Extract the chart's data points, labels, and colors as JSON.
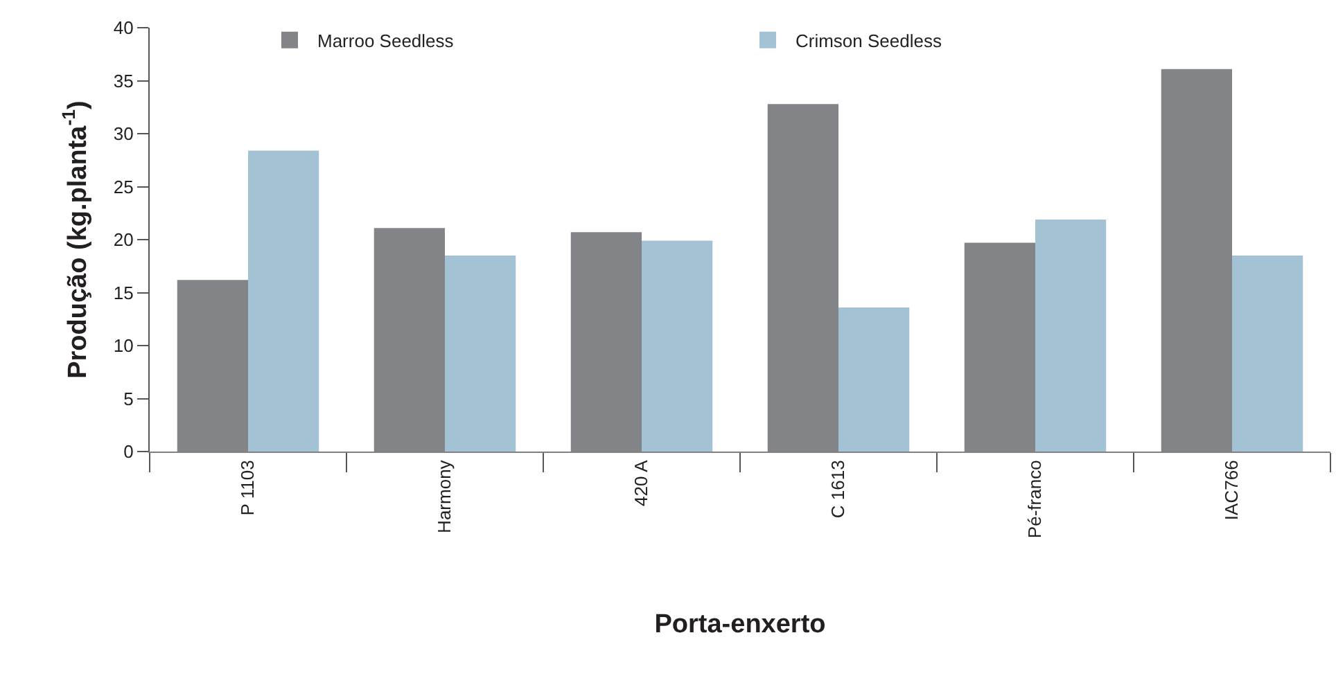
{
  "chart_data": {
    "type": "bar",
    "xlabel": "Porta-enxerto",
    "ylabel": "Produção (kg.planta$^{-1}$)",
    "categories": [
      "P 1103",
      "Harmony",
      "420 A",
      "C 1613",
      "Pé-franco",
      "IAC766"
    ],
    "series": [
      {
        "name": "Marroo Seedless",
        "color": "#838487",
        "values": [
          16.2,
          21.1,
          20.7,
          32.8,
          19.7,
          36.1
        ]
      },
      {
        "name": "Crimson Seedless",
        "color": "#a3c2d3",
        "values": [
          28.4,
          18.5,
          19.9,
          13.6,
          21.9,
          18.5
        ]
      }
    ],
    "ylim": [
      0,
      40
    ],
    "yticks": [
      0,
      5,
      10,
      15,
      20,
      25,
      30,
      35,
      40
    ],
    "grid": false,
    "legend": "top"
  }
}
